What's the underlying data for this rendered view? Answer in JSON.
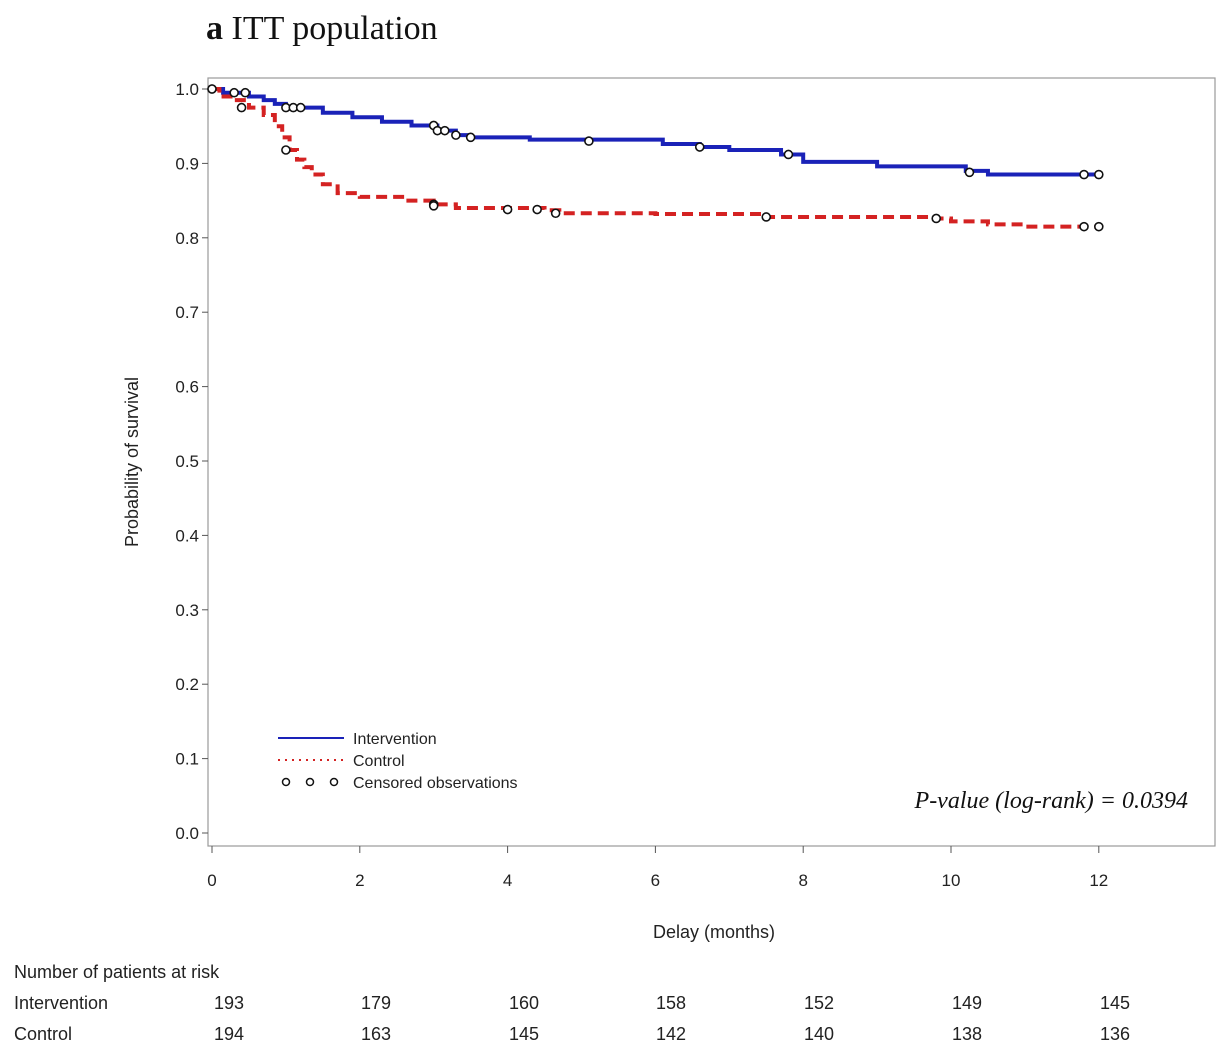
{
  "figure": {
    "panel_letter": "a",
    "panel_title": "ITT population"
  },
  "chart_data": {
    "type": "line",
    "step": true,
    "xlabel": "Delay (months)",
    "ylabel": "Probability of survival",
    "xlim": [
      0,
      13.5
    ],
    "ylim": [
      0,
      1.0
    ],
    "xticks": [
      0,
      2,
      4,
      6,
      8,
      10,
      12
    ],
    "yticks": [
      0.0,
      0.1,
      0.2,
      0.3,
      0.4,
      0.5,
      0.6,
      0.7,
      0.8,
      0.9,
      1.0
    ],
    "grid": false,
    "legend_position": "bottom-left",
    "annotation": "P-value (log-rank) = 0.0394",
    "censored_label": "Censored observations",
    "series": [
      {
        "name": "Intervention",
        "color": "#1a22b8",
        "line_style": "solid",
        "points": [
          [
            0,
            1.0
          ],
          [
            0.15,
            0.995
          ],
          [
            0.5,
            0.99
          ],
          [
            0.7,
            0.985
          ],
          [
            0.85,
            0.98
          ],
          [
            1.0,
            0.975
          ],
          [
            1.5,
            0.968
          ],
          [
            1.9,
            0.962
          ],
          [
            2.3,
            0.956
          ],
          [
            2.7,
            0.951
          ],
          [
            3.05,
            0.944
          ],
          [
            3.3,
            0.938
          ],
          [
            3.5,
            0.935
          ],
          [
            4.3,
            0.932
          ],
          [
            6.1,
            0.926
          ],
          [
            6.6,
            0.922
          ],
          [
            7.0,
            0.918
          ],
          [
            7.7,
            0.912
          ],
          [
            8.0,
            0.902
          ],
          [
            9.0,
            0.896
          ],
          [
            10.2,
            0.89
          ],
          [
            10.5,
            0.885
          ],
          [
            12.0,
            0.885
          ]
        ],
        "censored": [
          [
            0,
            1.0
          ],
          [
            0.3,
            0.995
          ],
          [
            0.45,
            0.995
          ],
          [
            1.0,
            0.975
          ],
          [
            1.1,
            0.975
          ],
          [
            1.2,
            0.975
          ],
          [
            3.0,
            0.951
          ],
          [
            3.05,
            0.944
          ],
          [
            3.15,
            0.944
          ],
          [
            3.3,
            0.938
          ],
          [
            3.5,
            0.935
          ],
          [
            5.1,
            0.93
          ],
          [
            6.6,
            0.922
          ],
          [
            7.8,
            0.912
          ],
          [
            10.25,
            0.888
          ],
          [
            11.8,
            0.885
          ],
          [
            12.0,
            0.885
          ]
        ]
      },
      {
        "name": "Control",
        "color": "#d42222",
        "line_style": "dashed",
        "points": [
          [
            0,
            1.0
          ],
          [
            0.1,
            0.99
          ],
          [
            0.3,
            0.985
          ],
          [
            0.5,
            0.975
          ],
          [
            0.7,
            0.965
          ],
          [
            0.85,
            0.95
          ],
          [
            0.95,
            0.935
          ],
          [
            1.05,
            0.918
          ],
          [
            1.15,
            0.905
          ],
          [
            1.25,
            0.895
          ],
          [
            1.35,
            0.885
          ],
          [
            1.5,
            0.872
          ],
          [
            1.7,
            0.86
          ],
          [
            2.0,
            0.855
          ],
          [
            2.6,
            0.85
          ],
          [
            3.0,
            0.845
          ],
          [
            3.3,
            0.84
          ],
          [
            4.5,
            0.837
          ],
          [
            4.7,
            0.833
          ],
          [
            6.0,
            0.832
          ],
          [
            7.5,
            0.828
          ],
          [
            9.8,
            0.826
          ],
          [
            10.0,
            0.822
          ],
          [
            10.5,
            0.818
          ],
          [
            11.0,
            0.815
          ],
          [
            12.0,
            0.815
          ]
        ],
        "censored": [
          [
            0,
            1.0
          ],
          [
            0.4,
            0.975
          ],
          [
            1.0,
            0.918
          ],
          [
            3.0,
            0.845
          ],
          [
            3.0,
            0.843
          ],
          [
            4.0,
            0.838
          ],
          [
            4.4,
            0.838
          ],
          [
            4.65,
            0.833
          ],
          [
            7.5,
            0.828
          ],
          [
            9.8,
            0.826
          ],
          [
            11.8,
            0.815
          ],
          [
            12.0,
            0.815
          ]
        ]
      }
    ]
  },
  "risk_table": {
    "title": "Number of patients at risk",
    "rows": [
      {
        "label": "Intervention",
        "values": [
          "193",
          "179",
          "160",
          "158",
          "152",
          "149",
          "145"
        ]
      },
      {
        "label": "Control",
        "values": [
          "194",
          "163",
          "145",
          "142",
          "140",
          "138",
          "136"
        ]
      }
    ]
  }
}
